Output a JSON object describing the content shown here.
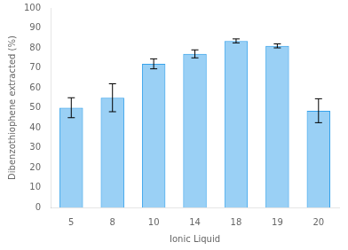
{
  "chart_data": {
    "type": "bar",
    "categories": [
      "5",
      "8",
      "10",
      "14",
      "18",
      "19",
      "20"
    ],
    "values": [
      50.0,
      55.0,
      72.0,
      77.0,
      83.5,
      81.0,
      48.5
    ],
    "errors": [
      5.0,
      7.0,
      2.5,
      2.0,
      1.0,
      1.0,
      6.0
    ],
    "xlabel": "Ionic Liquid",
    "ylabel": "Dibenzothiophene extracted (%)",
    "ylim": [
      0,
      100
    ],
    "yticks": [
      0,
      10,
      20,
      30,
      40,
      50,
      60,
      70,
      80,
      90,
      100
    ],
    "grid": false
  }
}
